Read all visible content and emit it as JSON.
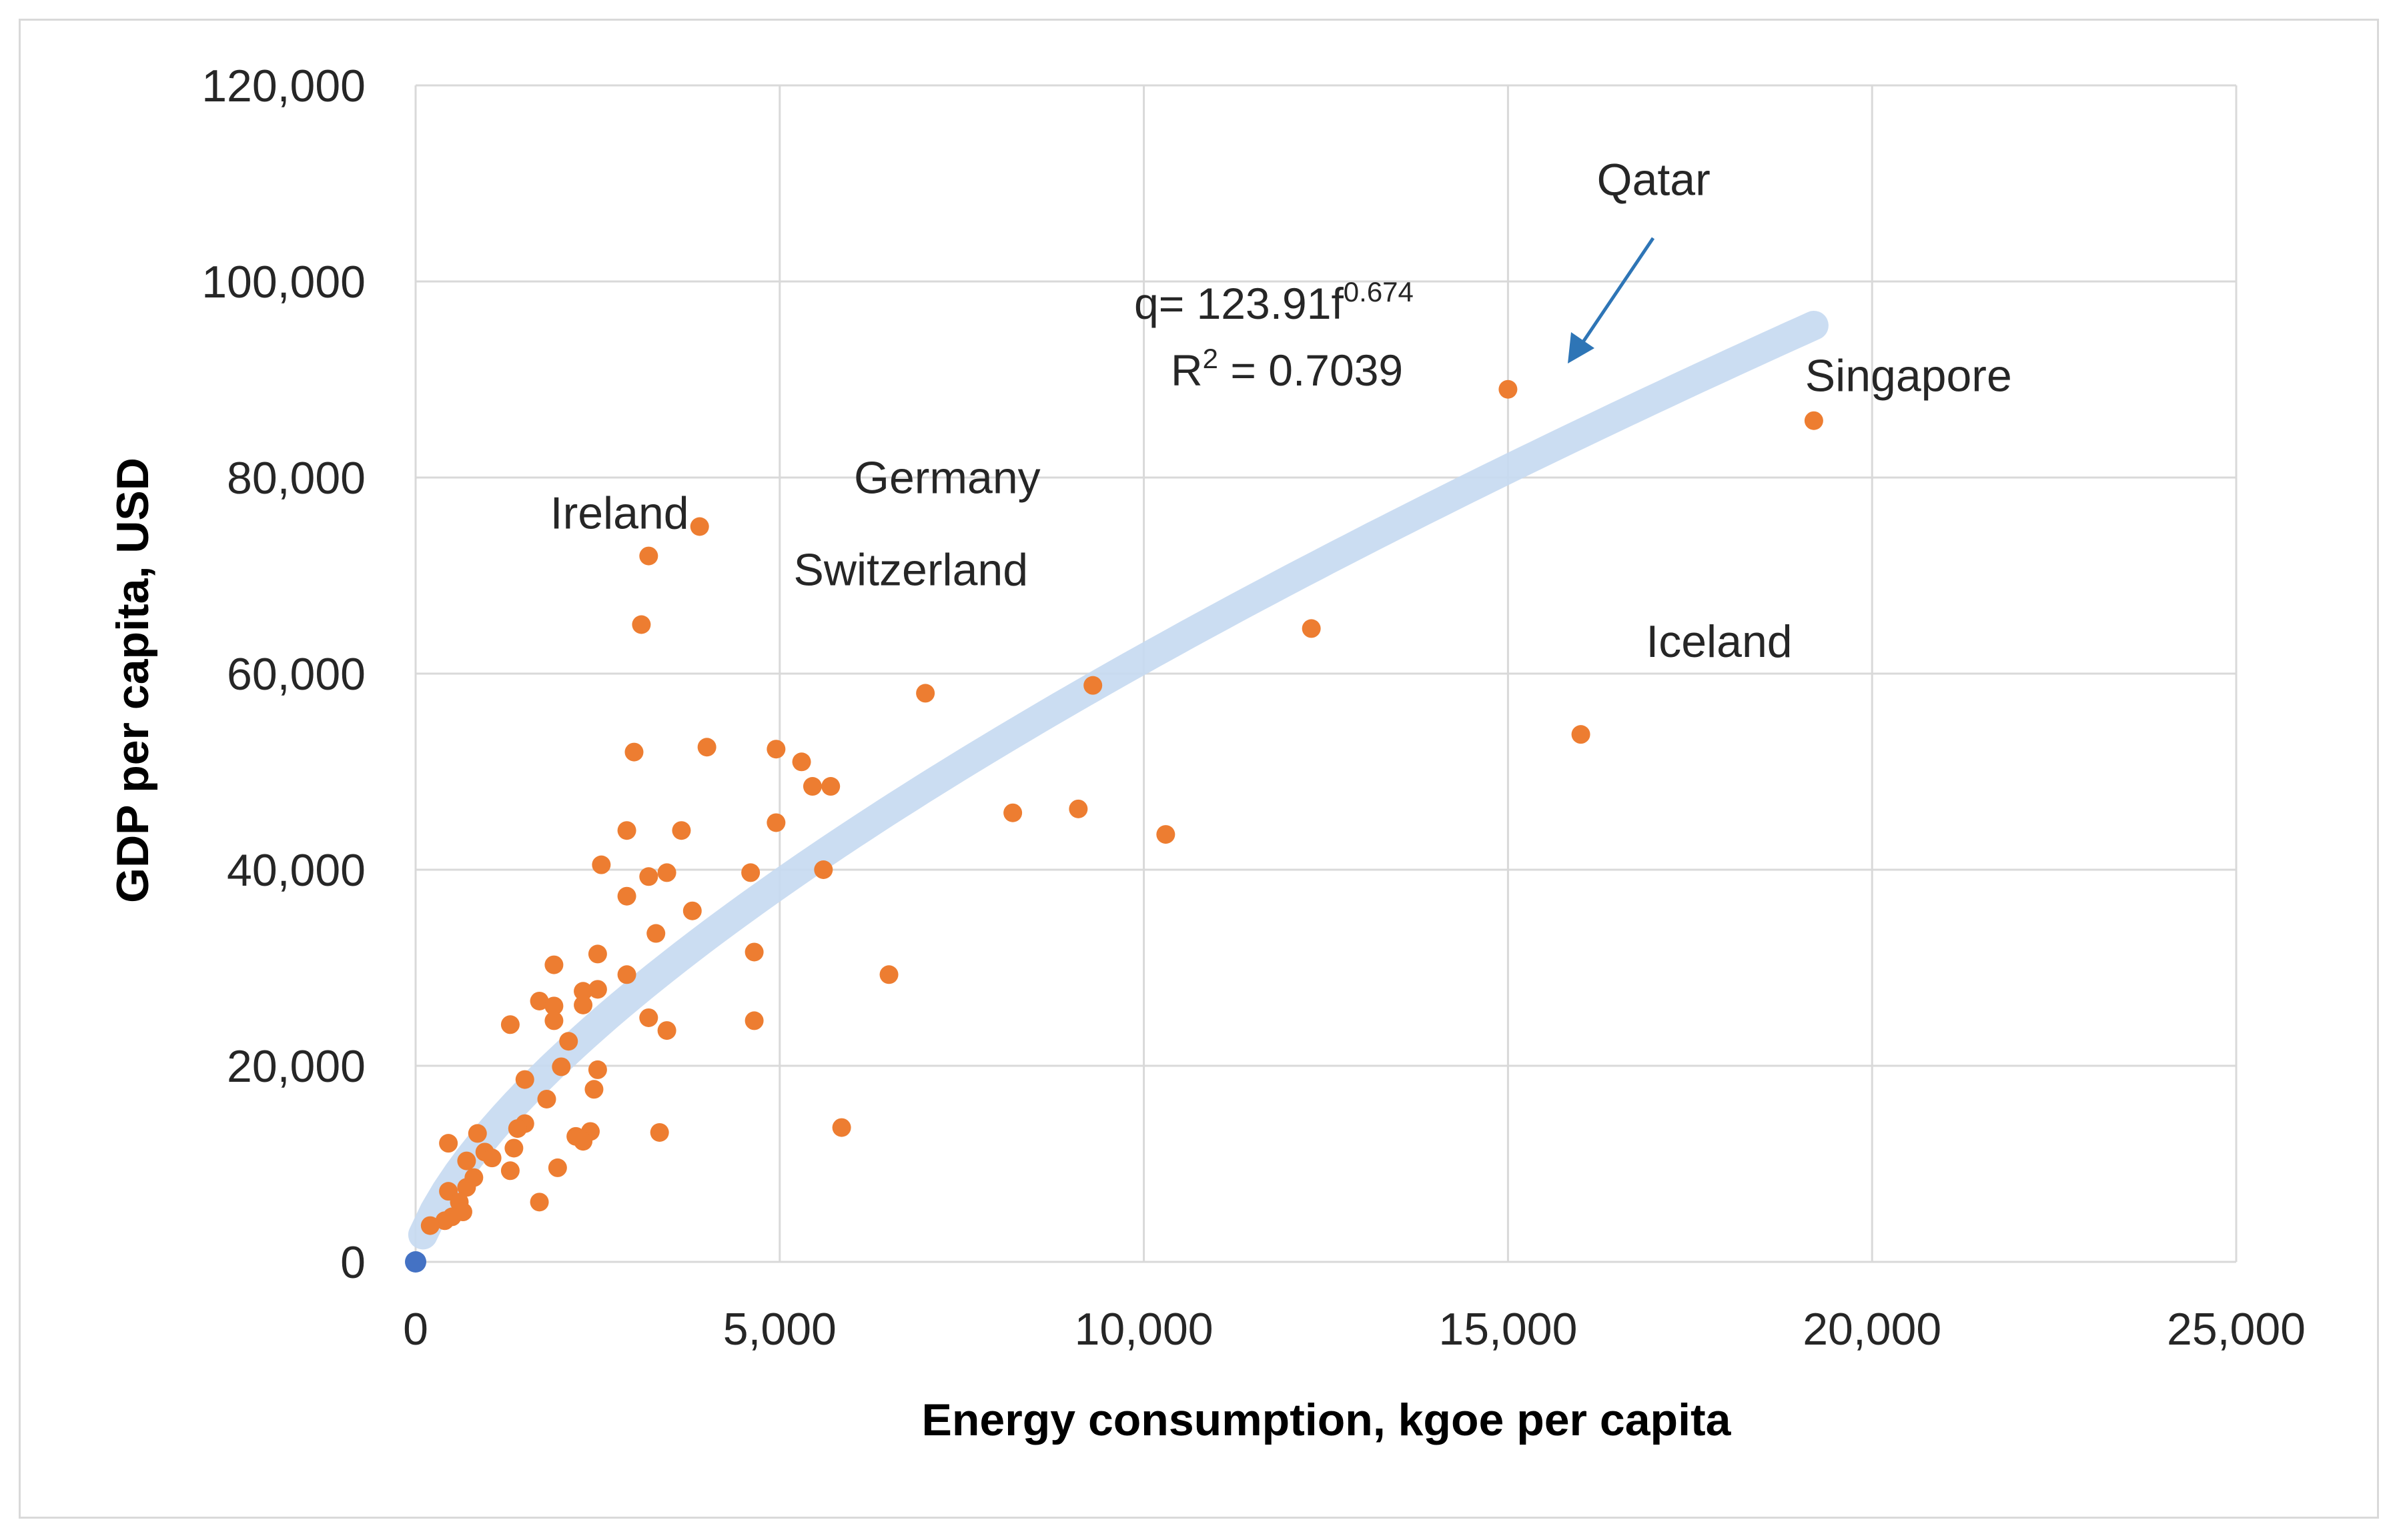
{
  "chart_data": {
    "type": "scatter",
    "title": "",
    "xlabel": "Energy consumption, kgoe per capita",
    "ylabel": "GDP per capita, USD",
    "xlim": [
      0,
      25000
    ],
    "ylim": [
      0,
      120000
    ],
    "x_ticks": [
      0,
      5000,
      10000,
      15000,
      20000,
      25000
    ],
    "x_tick_labels": [
      "0",
      "5,000",
      "10,000",
      "15,000",
      "20,000",
      "25,000"
    ],
    "y_ticks": [
      0,
      20000,
      40000,
      60000,
      80000,
      100000,
      120000
    ],
    "y_tick_labels": [
      "0",
      "20,000",
      "40,000",
      "60,000",
      "80,000",
      "100,000",
      "120,000"
    ],
    "grid": true,
    "colors": {
      "points": "#ed7d31",
      "origin_point": "#4472c4",
      "trendline": "#c5d9f1",
      "arrow": "#2e75b6",
      "grid": "#d9d9d9"
    },
    "series": [
      {
        "name": "countries",
        "points": [
          [
            3900,
            75000
          ],
          [
            3200,
            72000
          ],
          [
            3100,
            65000
          ],
          [
            4000,
            52500
          ],
          [
            3000,
            52000
          ],
          [
            4950,
            52300
          ],
          [
            5300,
            51000
          ],
          [
            5450,
            48500
          ],
          [
            5700,
            48500
          ],
          [
            4950,
            44800
          ],
          [
            2900,
            44000
          ],
          [
            3650,
            44000
          ],
          [
            2550,
            40500
          ],
          [
            3450,
            39700
          ],
          [
            3200,
            39300
          ],
          [
            4600,
            39700
          ],
          [
            5600,
            40000
          ],
          [
            2900,
            37300
          ],
          [
            3800,
            35800
          ],
          [
            3300,
            33500
          ],
          [
            2500,
            31400
          ],
          [
            4650,
            31600
          ],
          [
            2900,
            29300
          ],
          [
            6500,
            29300
          ],
          [
            1900,
            30300
          ],
          [
            2500,
            27800
          ],
          [
            2300,
            27600
          ],
          [
            2300,
            26200
          ],
          [
            1700,
            26600
          ],
          [
            1900,
            26100
          ],
          [
            1900,
            24600
          ],
          [
            1300,
            24200
          ],
          [
            3200,
            24900
          ],
          [
            3450,
            23600
          ],
          [
            4650,
            24600
          ],
          [
            2100,
            22500
          ],
          [
            2500,
            19600
          ],
          [
            2000,
            19900
          ],
          [
            1500,
            18600
          ],
          [
            2450,
            17600
          ],
          [
            1800,
            16600
          ],
          [
            1500,
            14100
          ],
          [
            1400,
            13600
          ],
          [
            2400,
            13300
          ],
          [
            2200,
            12800
          ],
          [
            2300,
            12300
          ],
          [
            3350,
            13200
          ],
          [
            5850,
            13700
          ],
          [
            850,
            13100
          ],
          [
            1350,
            11600
          ],
          [
            950,
            11200
          ],
          [
            1050,
            10600
          ],
          [
            700,
            10300
          ],
          [
            1300,
            9300
          ],
          [
            1950,
            9600
          ],
          [
            800,
            8600
          ],
          [
            700,
            7600
          ],
          [
            450,
            7200
          ],
          [
            600,
            6100
          ],
          [
            650,
            5100
          ],
          [
            500,
            4600
          ],
          [
            400,
            4200
          ],
          [
            200,
            3700
          ],
          [
            1700,
            6100
          ],
          [
            450,
            12100
          ],
          [
            7000,
            58000
          ],
          [
            8200,
            45800
          ],
          [
            9100,
            46200
          ],
          [
            10300,
            43600
          ],
          [
            12300,
            64600
          ],
          [
            16000,
            53800
          ],
          [
            15000,
            89000
          ],
          [
            19200,
            85800
          ],
          [
            9300,
            58800
          ]
        ]
      },
      {
        "name": "origin",
        "points": [
          [
            0,
            0
          ]
        ]
      }
    ],
    "trendline": {
      "type": "power",
      "coefficient": 123.91,
      "exponent": 0.674,
      "x_range": [
        100,
        19200
      ]
    },
    "annotations": [
      {
        "text": "Ireland",
        "anchor": [
          2800,
          74800
        ]
      },
      {
        "text": "Germany",
        "anchor": [
          7300,
          78400
        ]
      },
      {
        "text": "Switzerland",
        "anchor": [
          6800,
          69000
        ]
      },
      {
        "text": "Qatar",
        "anchor": [
          17000,
          108800
        ]
      },
      {
        "text": "Singapore",
        "anchor": [
          20500,
          88800
        ]
      },
      {
        "text": "Iceland",
        "anchor": [
          17900,
          61700
        ]
      }
    ],
    "equation": {
      "prefix": "q= 123.91f",
      "exponent": "0.674",
      "r2_prefix": "R",
      "r2_sup": "2",
      "r2_value": " = 0.7039"
    }
  }
}
